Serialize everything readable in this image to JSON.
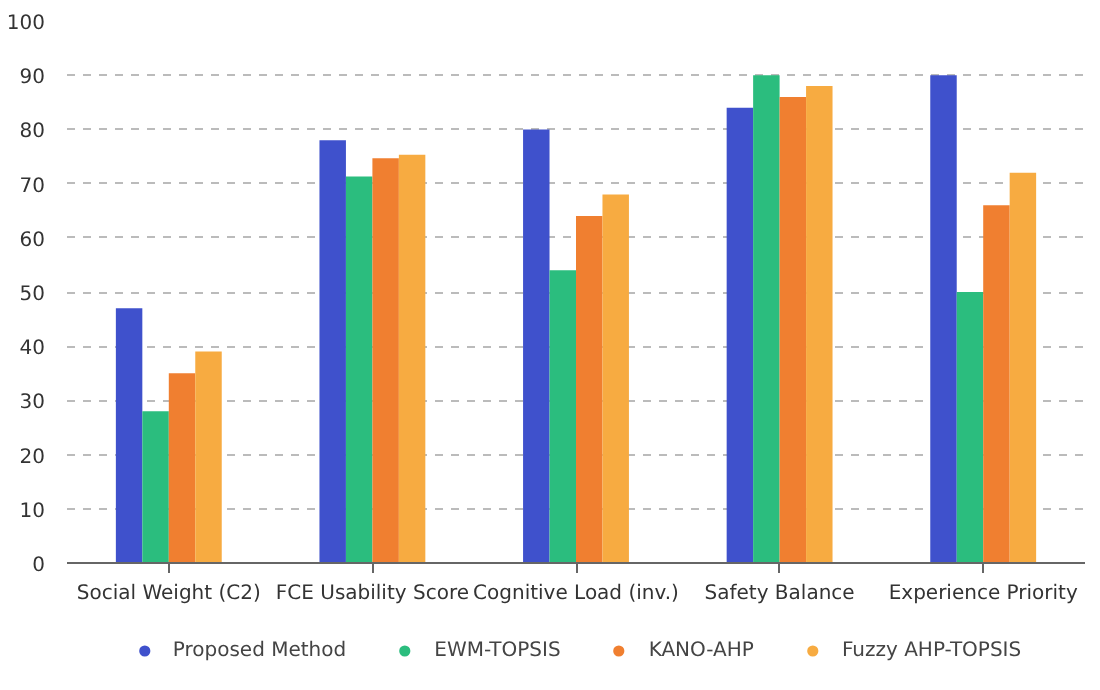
{
  "chart_data": {
    "type": "bar",
    "categories": [
      "Social Weight (C2)",
      "FCE Usability Score",
      "Cognitive Load (inv.)",
      "Safety Balance",
      "Experience Priority"
    ],
    "series": [
      {
        "name": "Proposed Method",
        "color": "#3f51cc",
        "values": [
          47,
          78,
          80,
          84,
          90
        ]
      },
      {
        "name": "EWM-TOPSIS",
        "color": "#2bbd7e",
        "values": [
          28,
          71.3,
          54,
          90,
          50
        ]
      },
      {
        "name": "KANO-AHP",
        "color": "#f07f30",
        "values": [
          35,
          74.7,
          64,
          86,
          66
        ]
      },
      {
        "name": "Fuzzy AHP-TOPSIS",
        "color": "#f7ab41",
        "values": [
          39,
          75.3,
          68,
          88,
          72
        ]
      }
    ],
    "ylim": [
      0,
      100
    ],
    "yticks": [
      0,
      10,
      20,
      30,
      40,
      50,
      60,
      70,
      80,
      90,
      100
    ],
    "grid": "y",
    "legend": "bottom",
    "marker": "circle"
  }
}
